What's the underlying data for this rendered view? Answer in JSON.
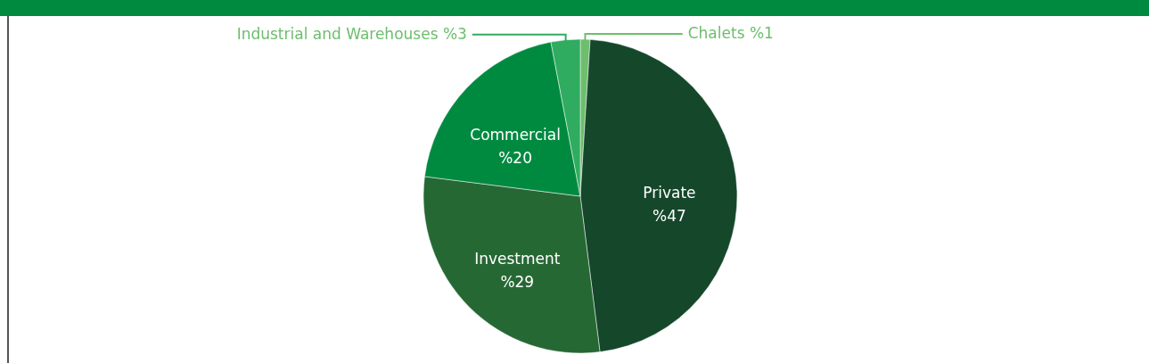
{
  "chart_data": {
    "type": "pie",
    "categories": [
      "Chalets",
      "Private",
      "Investment",
      "Commercial",
      "Industrial and Warehouses"
    ],
    "values": [
      1,
      47,
      29,
      20,
      3
    ],
    "colors": [
      "#6dbe6d",
      "#15472a",
      "#266834",
      "#008a40",
      "#2fac5f"
    ],
    "value_labels": [
      "%1",
      "%47",
      "%29",
      "%20",
      "%3"
    ],
    "legend": false
  }
}
